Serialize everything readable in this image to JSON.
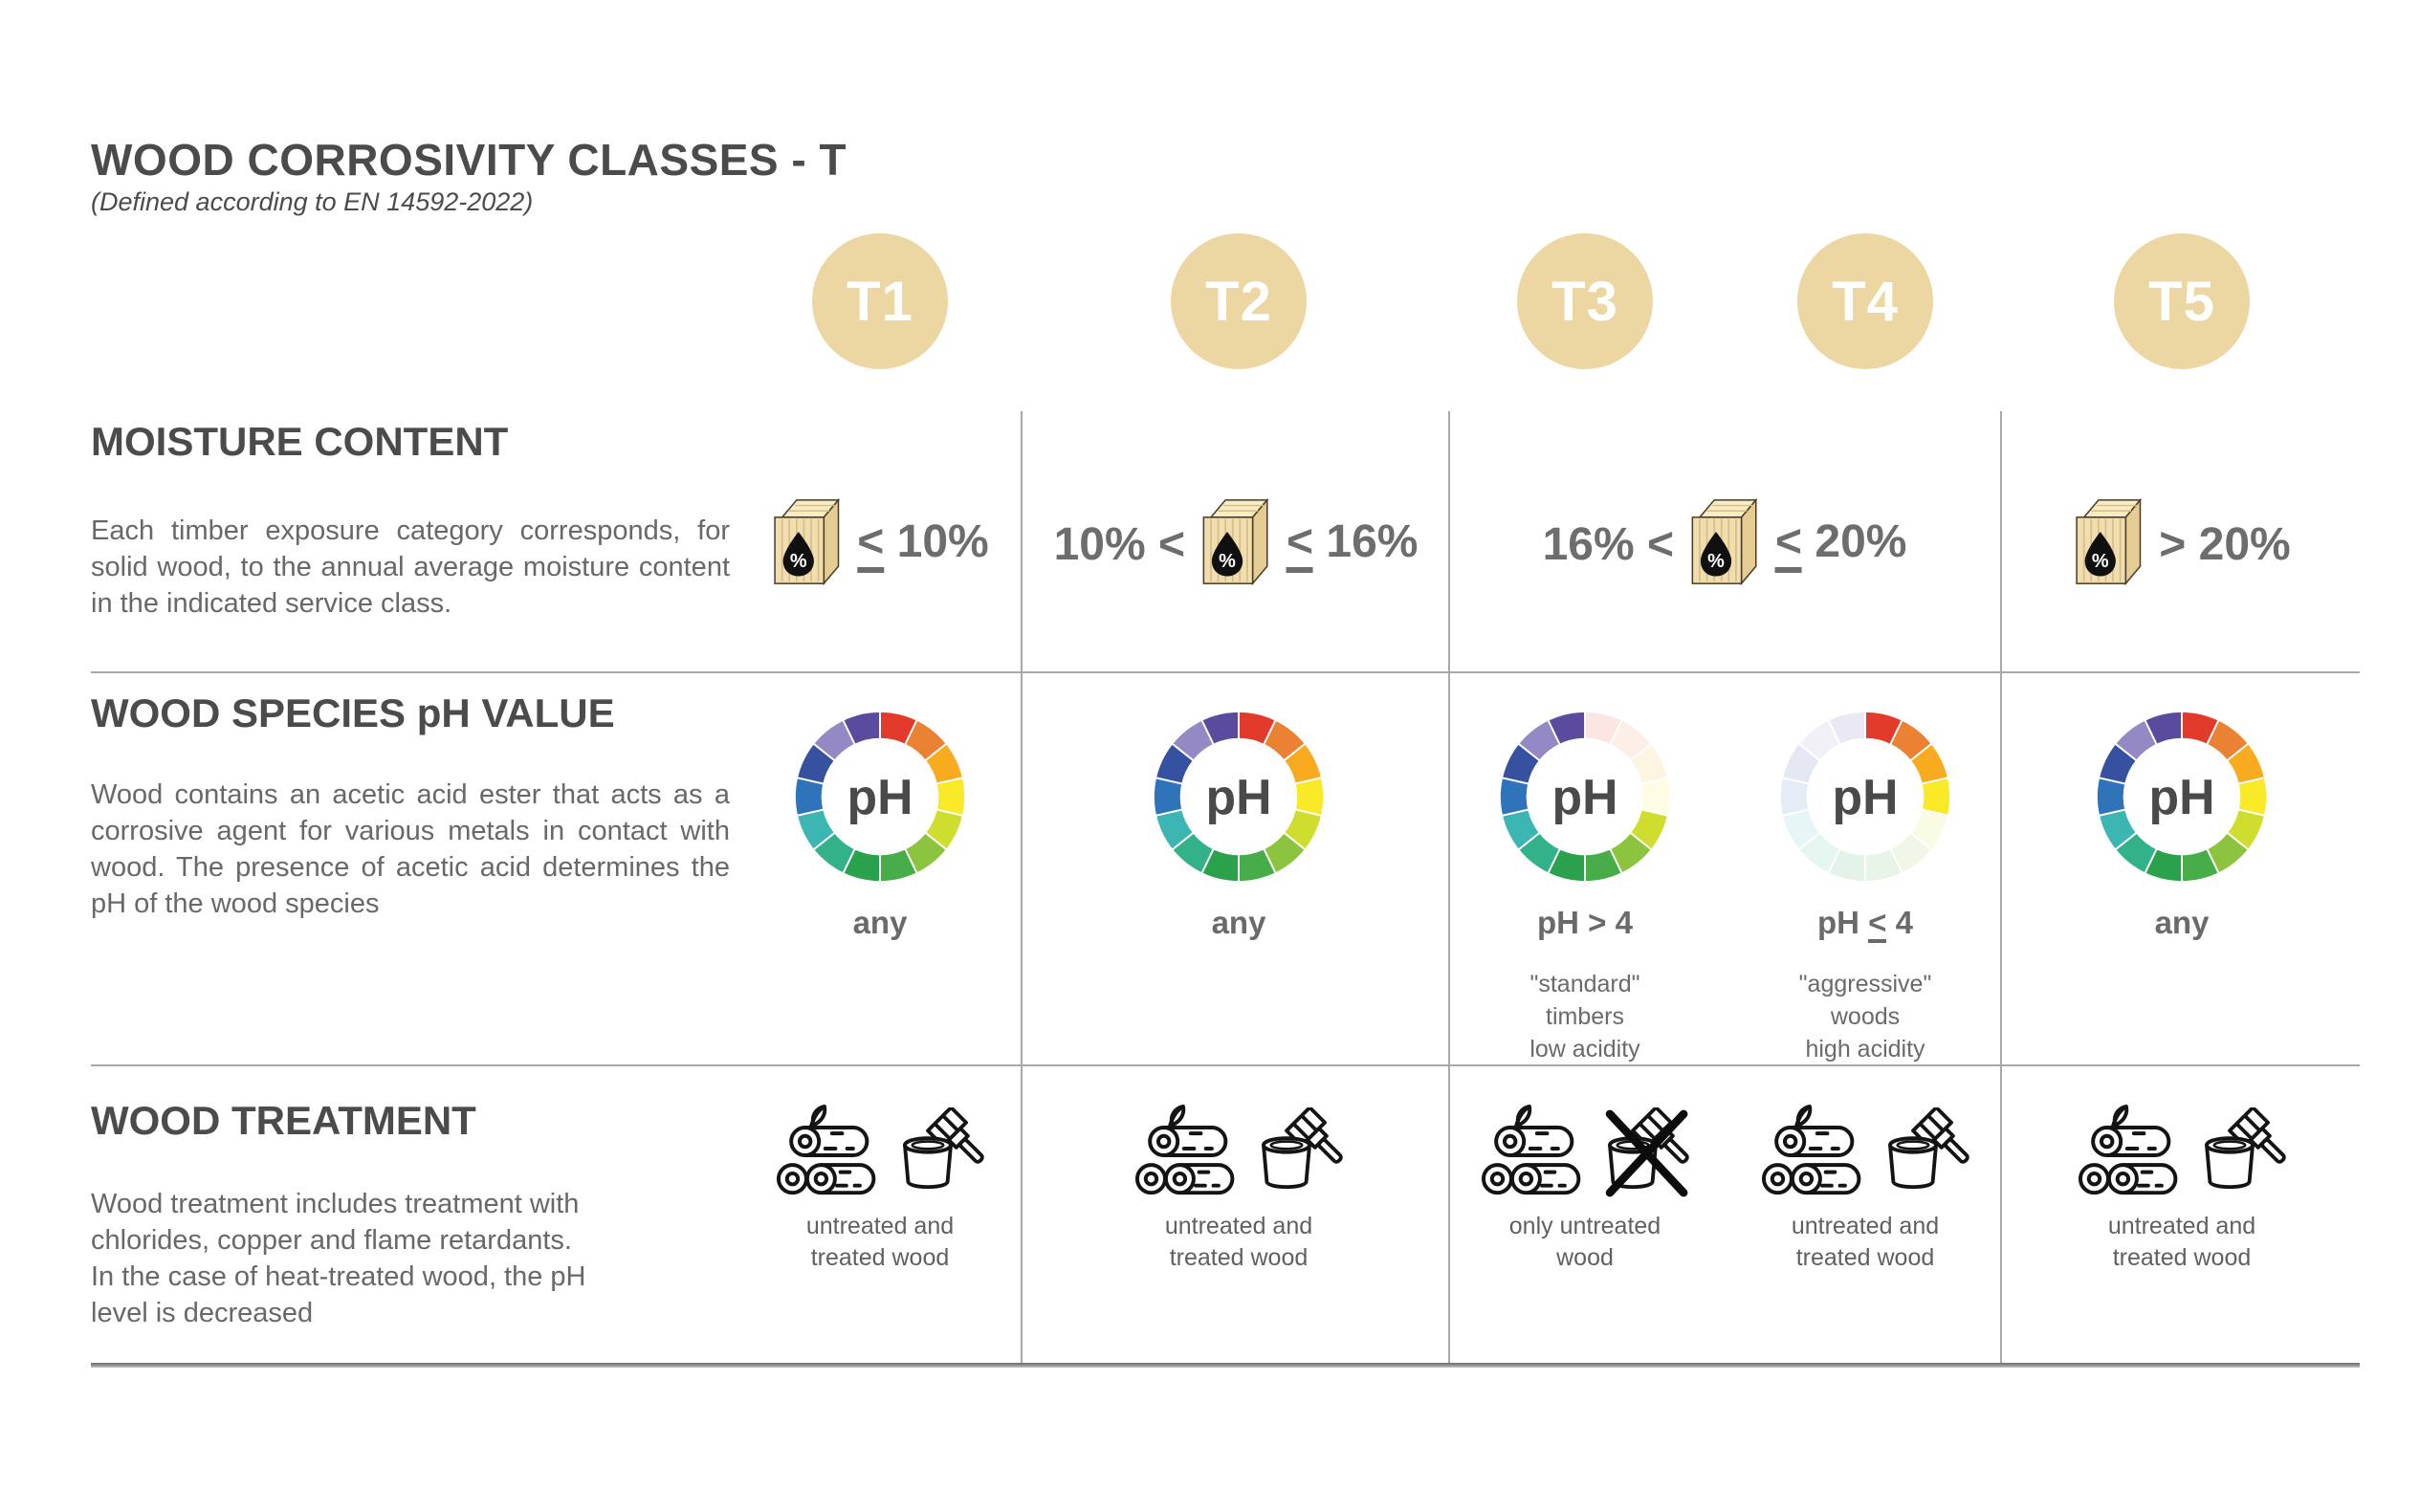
{
  "header": {
    "title": "WOOD CORROSIVITY CLASSES - T",
    "subtitle": "(Defined according to EN 14592-2022)"
  },
  "classes": [
    "T1",
    "T2",
    "T3",
    "T4",
    "T5"
  ],
  "colors": {
    "badge": "#ecd6a1",
    "heading": "#4b4b4b",
    "body_text": "#686868",
    "value_text": "#6d6d6d",
    "grid_line": "#a8a8a8",
    "bottom_line": "#6e6e6e",
    "ph_center_text": "#4a4a4a",
    "wood_block": "#f0ddb0",
    "wheel_segments": [
      "#e23b2b",
      "#ea8133",
      "#f8ab1e",
      "#f9e926",
      "#cfdd2e",
      "#8cc43f",
      "#46ad49",
      "#2aa14b",
      "#33b189",
      "#3cb6b3",
      "#2f73ba",
      "#35519f",
      "#9489c2",
      "#5a4b9e"
    ]
  },
  "icons": {
    "moisture": "wood-block-moisture-icon",
    "ph": "ph-color-wheel-icon",
    "logs": "wood-logs-icon",
    "bucket": "paint-bucket-brush-icon",
    "crossed_bucket": "crossed-paint-bucket-icon"
  },
  "sections": {
    "moisture": {
      "heading": "MOISTURE CONTENT",
      "description": "Each timber exposure category corresponds, for solid wood, to the annual average moisture content in the indicated service class.",
      "cells": [
        {
          "classes": [
            "T1"
          ],
          "prefix": "",
          "suffix": "≤ 10%"
        },
        {
          "classes": [
            "T2"
          ],
          "prefix": "10% <",
          "suffix": "≤ 16%"
        },
        {
          "classes": [
            "T3",
            "T4"
          ],
          "prefix": "16% <",
          "suffix": "≤ 20%"
        },
        {
          "classes": [
            "T5"
          ],
          "prefix": "",
          "suffix": "> 20%"
        }
      ]
    },
    "ph": {
      "heading": "WOOD SPECIES pH VALUE",
      "description": "Wood contains an acetic acid ester that acts as a corrosive agent for various metals in contact with wood. The presence of acetic acid determines the pH of the wood species",
      "wheel_center_label": "pH",
      "cells": [
        {
          "class": "T1",
          "label": "any",
          "caption_lines": [],
          "faded_segments": []
        },
        {
          "class": "T2",
          "label": "any",
          "caption_lines": [],
          "faded_segments": []
        },
        {
          "class": "T3",
          "label": "pH > 4",
          "caption_lines": [
            "\"standard\"",
            "timbers",
            "low acidity"
          ],
          "faded_segments": [
            0,
            1,
            2,
            3
          ]
        },
        {
          "class": "T4",
          "label": "pH ≤ 4",
          "caption_lines": [
            "\"aggressive\"",
            "woods",
            "high acidity"
          ],
          "faded_segments": [
            4,
            5,
            6,
            7,
            8,
            9,
            10,
            11,
            12,
            13
          ]
        },
        {
          "class": "T5",
          "label": "any",
          "caption_lines": [],
          "faded_segments": []
        }
      ]
    },
    "treatment": {
      "heading": "WOOD TREATMENT",
      "description": "Wood treatment includes treatment with\nchlorides, copper and flame retardants.\nIn the case of heat-treated wood, the pH\nlevel is decreased",
      "cells": [
        {
          "class": "T1",
          "caption_lines": [
            "untreated and",
            "treated wood"
          ],
          "bucket_crossed": false
        },
        {
          "class": "T2",
          "caption_lines": [
            "untreated and",
            "treated wood"
          ],
          "bucket_crossed": false
        },
        {
          "class": "T3",
          "caption_lines": [
            "only untreated",
            "wood"
          ],
          "bucket_crossed": true
        },
        {
          "class": "T4",
          "caption_lines": [
            "untreated and",
            "treated wood"
          ],
          "bucket_crossed": false
        },
        {
          "class": "T5",
          "caption_lines": [
            "untreated and",
            "treated wood"
          ],
          "bucket_crossed": false
        }
      ]
    }
  }
}
